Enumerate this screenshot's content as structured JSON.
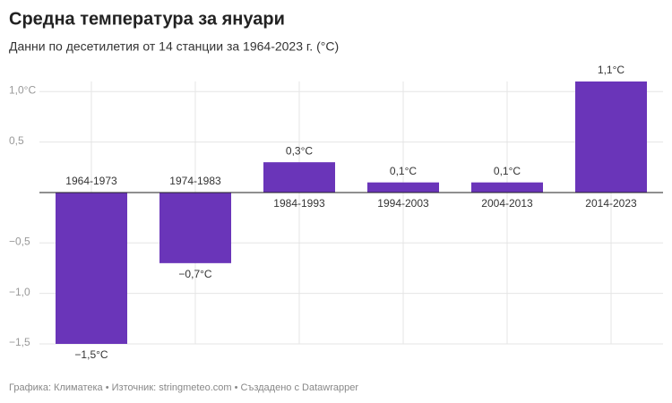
{
  "chart_data": {
    "type": "bar",
    "title": "Средна температура за януари",
    "subtitle": "Данни по десетилетия от 14 станции за 1964-2023 г. (°C)",
    "categories": [
      "1964-1973",
      "1974-1983",
      "1984-1993",
      "1994-2003",
      "2004-2013",
      "2014-2023"
    ],
    "values": [
      -1.5,
      -0.7,
      0.3,
      0.1,
      0.1,
      1.1
    ],
    "value_labels": [
      "−1,5°C",
      "−0,7°C",
      "0,3°C",
      "0,1°C",
      "0,1°C",
      "1,1°C"
    ],
    "color": "#6a35b9",
    "ylim": [
      -1.5,
      1.1
    ],
    "yticks": [
      {
        "value": 1,
        "label": "1,0°C"
      },
      {
        "value": 0.5,
        "label": "0,5"
      },
      {
        "value": -0.5,
        "label": "−0,5"
      },
      {
        "value": -1,
        "label": "−1,0"
      },
      {
        "value": -1.5,
        "label": "−1,5"
      }
    ],
    "grid": true,
    "footer": "Графика: Климатека • Източник: stringmeteo.com • Създадено с Datawrapper"
  }
}
